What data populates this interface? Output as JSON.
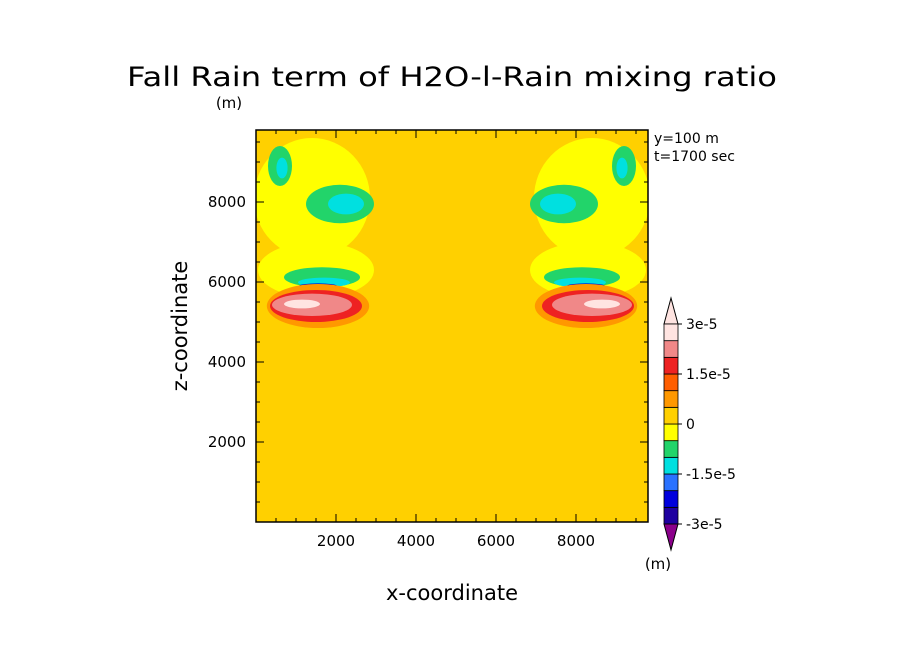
{
  "chart_data": {
    "type": "heatmap",
    "title": "Fall Rain term of H2O-l-Rain mixing ratio",
    "unit_label": "(m)",
    "colorbar_unit": "(m)",
    "xlabel": "x-coordinate",
    "ylabel": "z-coordinate",
    "xlim": [
      0,
      9800
    ],
    "ylim": [
      0,
      9800
    ],
    "xticks": [
      2000,
      4000,
      6000,
      8000
    ],
    "yticks": [
      2000,
      4000,
      6000,
      8000
    ],
    "xtick_labels": [
      "2000",
      "4000",
      "6000",
      "8000"
    ],
    "ytick_labels": [
      "2000",
      "4000",
      "6000",
      "8000"
    ],
    "annotations": [
      "y=100 m",
      "t=1700 sec"
    ],
    "colorbar": {
      "levels": [
        -3e-05,
        -2.5e-05,
        -2e-05,
        -1.5e-05,
        -1e-05,
        -5e-06,
        0,
        5e-06,
        1e-05,
        1.5e-05,
        2e-05,
        2.5e-05,
        3e-05
      ],
      "colors": [
        "#8b008b",
        "#1e00a0",
        "#0000dd",
        "#2a72ff",
        "#00e0e0",
        "#22d46a",
        "#ffff00",
        "#ffd000",
        "#ff9800",
        "#ff5e00",
        "#ee2222",
        "#f08888",
        "#ffe4e1"
      ],
      "labels": [
        {
          "value": 3e-05,
          "text": "3e-5"
        },
        {
          "value": 1.5e-05,
          "text": "1.5e-5"
        },
        {
          "value": 0,
          "text": "0"
        },
        {
          "value": -1.5e-05,
          "text": "-1.5e-5"
        },
        {
          "value": -3e-05,
          "text": "-3e-5"
        }
      ]
    },
    "background_value": 2e-06,
    "features": [
      {
        "name": "left-upper-lobe-outer",
        "color": "#ffff00",
        "cx": 1400,
        "cy": 8100,
        "rx": 1450,
        "ry": 1500
      },
      {
        "name": "left-upper-lobe-green",
        "color": "#22d46a",
        "cx": 2100,
        "cy": 7950,
        "rx": 850,
        "ry": 480
      },
      {
        "name": "left-upper-lobe-cyan",
        "color": "#00e0e0",
        "cx": 2250,
        "cy": 7950,
        "rx": 450,
        "ry": 260
      },
      {
        "name": "left-top-green",
        "color": "#22d46a",
        "cx": 600,
        "cy": 8900,
        "rx": 300,
        "ry": 500
      },
      {
        "name": "left-top-cyan",
        "color": "#00e0e0",
        "cx": 650,
        "cy": 8850,
        "rx": 140,
        "ry": 260
      },
      {
        "name": "left-arc-yellow",
        "color": "#ffff00",
        "cx": 1500,
        "cy": 6300,
        "rx": 1450,
        "ry": 700
      },
      {
        "name": "left-arc-green",
        "color": "#22d46a",
        "cx": 1650,
        "cy": 6120,
        "rx": 950,
        "ry": 250
      },
      {
        "name": "left-arc-cyan",
        "color": "#00e0e0",
        "cx": 1700,
        "cy": 5990,
        "rx": 650,
        "ry": 120
      },
      {
        "name": "left-arc-blue",
        "color": "#0000dd",
        "cx": 1550,
        "cy": 5900,
        "rx": 480,
        "ry": 65
      },
      {
        "name": "left-arc-orange",
        "color": "#ff9800",
        "cx": 1550,
        "cy": 5400,
        "rx": 1280,
        "ry": 550
      },
      {
        "name": "left-arc-red",
        "color": "#ee2222",
        "cx": 1500,
        "cy": 5400,
        "rx": 1150,
        "ry": 400
      },
      {
        "name": "left-arc-pink",
        "color": "#f08888",
        "cx": 1400,
        "cy": 5430,
        "rx": 1000,
        "ry": 280
      },
      {
        "name": "left-arc-light",
        "color": "#ffe4e1",
        "cx": 1150,
        "cy": 5450,
        "rx": 450,
        "ry": 110
      },
      {
        "name": "right-upper-lobe-outer",
        "color": "#ffff00",
        "cx": 8400,
        "cy": 8100,
        "rx": 1450,
        "ry": 1500
      },
      {
        "name": "right-upper-lobe-green",
        "color": "#22d46a",
        "cx": 7700,
        "cy": 7950,
        "rx": 850,
        "ry": 480
      },
      {
        "name": "right-upper-lobe-cyan",
        "color": "#00e0e0",
        "cx": 7550,
        "cy": 7950,
        "rx": 450,
        "ry": 260
      },
      {
        "name": "right-top-green",
        "color": "#22d46a",
        "cx": 9200,
        "cy": 8900,
        "rx": 300,
        "ry": 500
      },
      {
        "name": "right-top-cyan",
        "color": "#00e0e0",
        "cx": 9150,
        "cy": 8850,
        "rx": 140,
        "ry": 260
      },
      {
        "name": "right-arc-yellow",
        "color": "#ffff00",
        "cx": 8300,
        "cy": 6300,
        "rx": 1450,
        "ry": 700
      },
      {
        "name": "right-arc-green",
        "color": "#22d46a",
        "cx": 8150,
        "cy": 6120,
        "rx": 950,
        "ry": 250
      },
      {
        "name": "right-arc-cyan",
        "color": "#00e0e0",
        "cx": 8100,
        "cy": 5990,
        "rx": 650,
        "ry": 120
      },
      {
        "name": "right-arc-blue",
        "color": "#0000dd",
        "cx": 8250,
        "cy": 5900,
        "rx": 480,
        "ry": 65
      },
      {
        "name": "right-arc-orange",
        "color": "#ff9800",
        "cx": 8250,
        "cy": 5400,
        "rx": 1280,
        "ry": 550
      },
      {
        "name": "right-arc-red",
        "color": "#ee2222",
        "cx": 8300,
        "cy": 5400,
        "rx": 1150,
        "ry": 400
      },
      {
        "name": "right-arc-pink",
        "color": "#f08888",
        "cx": 8400,
        "cy": 5430,
        "rx": 1000,
        "ry": 280
      },
      {
        "name": "right-arc-light",
        "color": "#ffe4e1",
        "cx": 8650,
        "cy": 5450,
        "rx": 450,
        "ry": 110
      }
    ]
  }
}
